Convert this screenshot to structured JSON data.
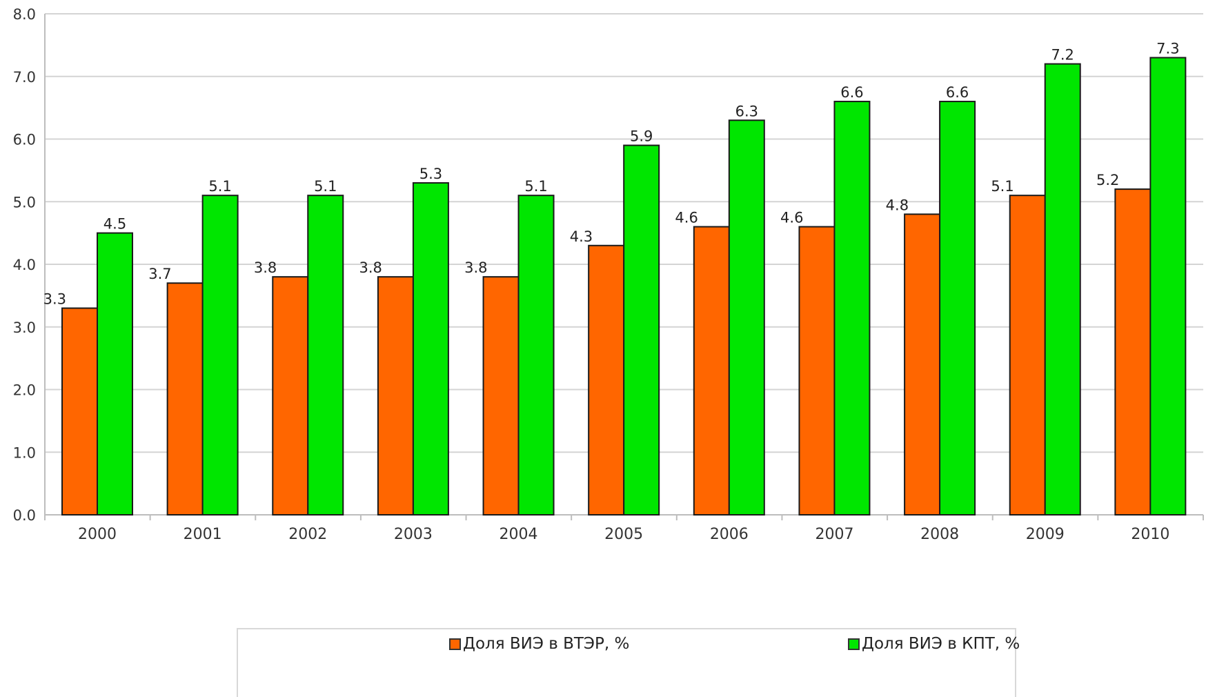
{
  "chart_data": {
    "type": "bar",
    "title": "",
    "xlabel": "",
    "ylabel": "",
    "categories": [
      "2000",
      "2001",
      "2002",
      "2003",
      "2004",
      "2005",
      "2006",
      "2007",
      "2008",
      "2009",
      "2010"
    ],
    "series": [
      {
        "name": "Доля ВИЭ в ВТЭР, %",
        "color": "#ff6600",
        "values": [
          3.3,
          3.7,
          3.8,
          3.8,
          3.8,
          4.3,
          4.6,
          4.6,
          4.8,
          5.1,
          5.2
        ],
        "labels": [
          "3.3",
          "3.7",
          "3.8",
          "3.8",
          "3.8",
          "4.3",
          "4.6",
          "4.6",
          "4.8",
          "5.1",
          "5.2"
        ]
      },
      {
        "name": "Доля ВИЭ в КПТ, %",
        "color": "#00e600",
        "values": [
          4.5,
          5.1,
          5.1,
          5.3,
          5.1,
          5.9,
          6.3,
          6.6,
          6.6,
          7.2,
          7.3
        ],
        "labels": [
          "4.5",
          "5.1",
          "5.1",
          "5.3",
          "5.1",
          "5.9",
          "6.3",
          "6.6",
          "6.6",
          "7.2",
          "7.3"
        ]
      }
    ],
    "ylim": [
      0,
      8
    ],
    "yticks": [
      "0.0",
      "1.0",
      "2.0",
      "3.0",
      "4.0",
      "5.0",
      "6.0",
      "7.0",
      "8.0"
    ],
    "grid": true,
    "legend_position": "bottom"
  }
}
